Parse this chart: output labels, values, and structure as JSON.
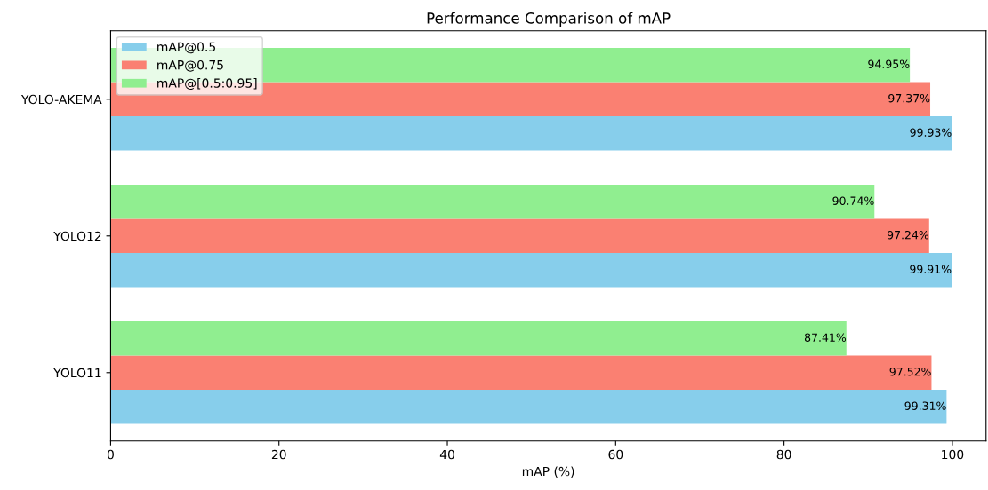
{
  "chart_data": {
    "type": "bar",
    "orientation": "horizontal",
    "title": "Performance Comparison of mAP",
    "xlabel": "mAP (%)",
    "categories": [
      "YOLO-AKEMA",
      "YOLO12",
      "YOLO11"
    ],
    "series": [
      {
        "name": "mAP@0.5",
        "color": "#87ceeb",
        "values": [
          99.93,
          99.91,
          99.31
        ],
        "value_labels": [
          "99.93%",
          "99.91%",
          "99.31%"
        ]
      },
      {
        "name": "mAP@0.75",
        "color": "#fa8072",
        "values": [
          97.37,
          97.24,
          97.52
        ],
        "value_labels": [
          "97.37%",
          "97.24%",
          "97.52%"
        ]
      },
      {
        "name": "mAP@[0.5:0.95]",
        "color": "#90ee90",
        "values": [
          94.95,
          90.74,
          87.41
        ],
        "value_labels": [
          "94.95%",
          "90.74%",
          "87.41%"
        ]
      }
    ],
    "xlim": [
      0,
      104
    ],
    "xticks": [
      0,
      20,
      40,
      60,
      80,
      100
    ],
    "grid": false,
    "legend": "top left"
  }
}
